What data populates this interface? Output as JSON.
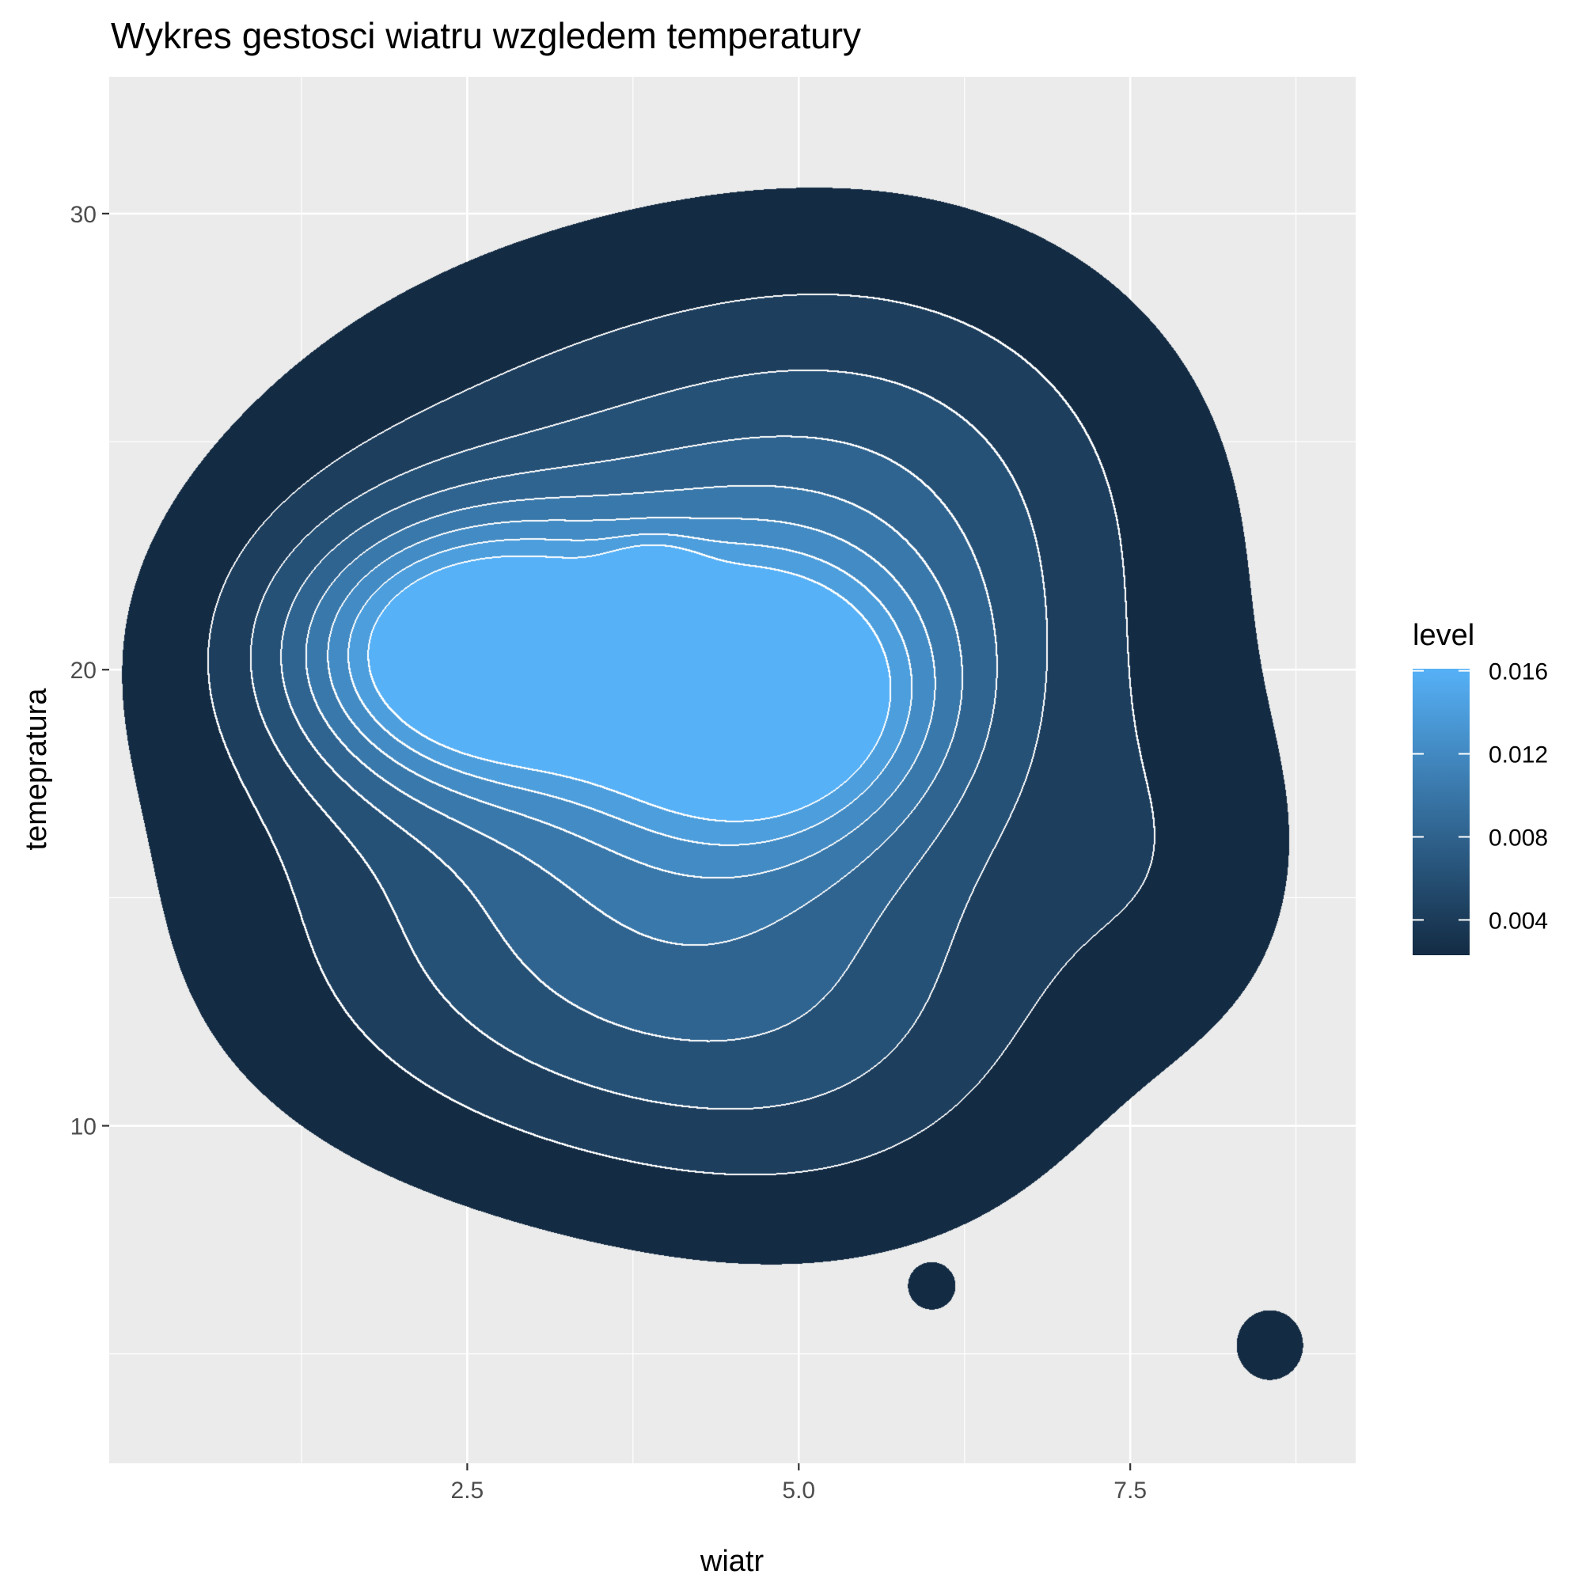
{
  "chart_data": {
    "type": "density-contour",
    "title": "Wykres gestosci wiatru wzgledem temperatury",
    "xlabel": "wiatr",
    "ylabel": "temepratura",
    "xlim": [
      -0.2,
      9.2
    ],
    "ylim": [
      2.6,
      33
    ],
    "x_ticks": [
      2.5,
      5.0,
      7.5
    ],
    "x_tick_labels": [
      "2.5",
      "5.0",
      "7.5"
    ],
    "y_ticks": [
      10,
      20,
      30
    ],
    "y_tick_labels": [
      "10",
      "20",
      "30"
    ],
    "grid": true,
    "legend": {
      "title": "level",
      "position": "right",
      "labels": [
        "0.004",
        "0.008",
        "0.012",
        "0.016"
      ],
      "values": [
        0.004,
        0.008,
        0.012,
        0.016
      ],
      "range": [
        0.0023,
        0.0161
      ],
      "low_color": "#132B43",
      "high_color": "#56B1F7"
    },
    "peaks": [
      {
        "x": 2.55,
        "y": 20.4,
        "level": 0.016
      },
      {
        "x": 4.7,
        "y": 19.4,
        "level": 0.015
      },
      {
        "x": 3.9,
        "y": 21.4,
        "level": 0.013
      }
    ],
    "colors": {
      "panel_bg": "#EBEBEB",
      "grid": "#FFFFFF",
      "contour_line": "#FFFFFF"
    }
  }
}
